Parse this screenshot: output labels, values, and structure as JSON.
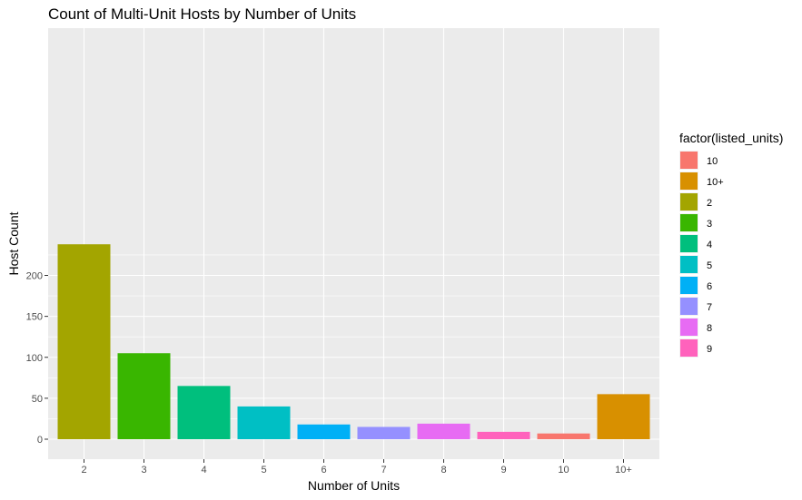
{
  "chart_data": {
    "type": "bar",
    "title": "Count of Multi-Unit Hosts by Number of Units",
    "xlabel": "Number of Units",
    "ylabel": "Host Count",
    "categories": [
      "2",
      "3",
      "4",
      "5",
      "6",
      "7",
      "8",
      "9",
      "10",
      "10+"
    ],
    "values": [
      238,
      105,
      65,
      40,
      18,
      15,
      19,
      9,
      7,
      55
    ],
    "ylim": [
      0,
      250
    ],
    "yticks": [
      "0",
      "50",
      "100",
      "150",
      "200"
    ],
    "grid": true,
    "legend": {
      "title": "factor(listed_units)",
      "placement": "right",
      "entries": [
        "10",
        "10+",
        "2",
        "3",
        "4",
        "5",
        "6",
        "7",
        "8",
        "9"
      ]
    },
    "colors": {
      "10": "#F8766D",
      "10+": "#D89000",
      "2": "#A3A500",
      "3": "#39B600",
      "4": "#00BF7D",
      "5": "#00BFC4",
      "6": "#00B0F6",
      "7": "#9590FF",
      "8": "#E76BF3",
      "9": "#FF62BC"
    },
    "panel_background": "#EBEBEB",
    "gridline_color": "#FFFFFF"
  }
}
